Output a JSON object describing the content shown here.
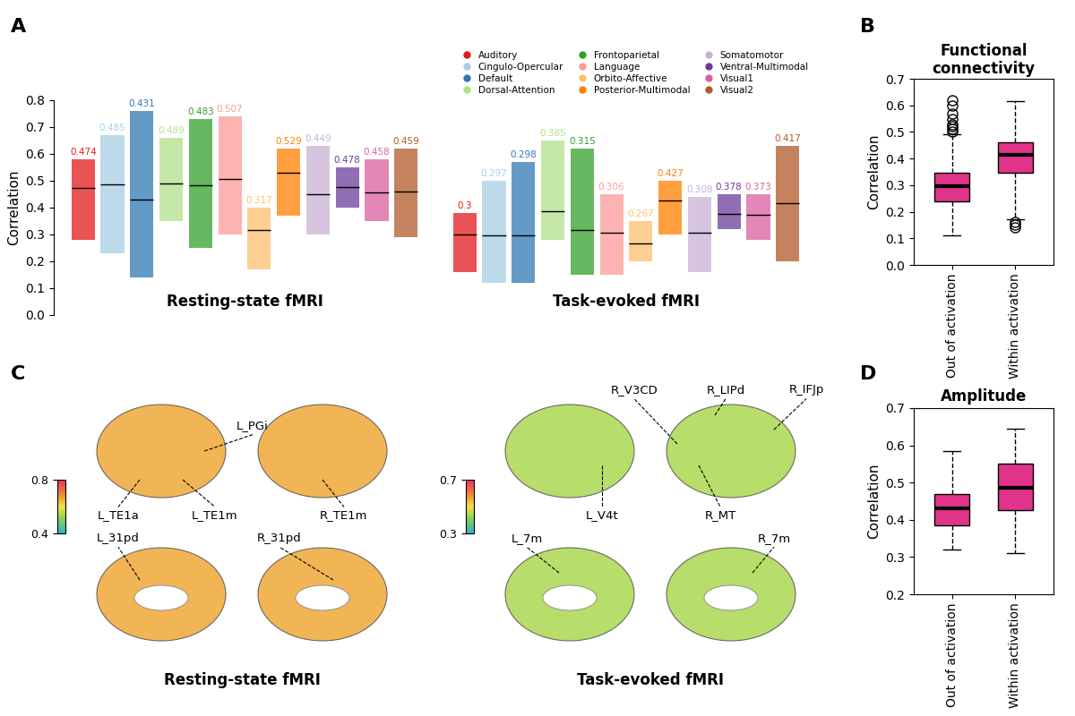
{
  "chart_data": [
    {
      "panel_label": "A",
      "type": "range",
      "ylabel": "Correlation",
      "groups": [
        "Resting-state fMRI",
        "Task-evoked fMRI"
      ],
      "ylim": [
        0.0,
        0.8
      ],
      "yticks": [
        0.0,
        0.1,
        0.2,
        0.3,
        0.4,
        0.5,
        0.6,
        0.7,
        0.8
      ],
      "legend": "upper right",
      "data_labels": true,
      "tick_labels": "y",
      "series": [
        {
          "name": "Auditory",
          "color": "#e31a1c",
          "values": [
            0.474,
            0.3
          ],
          "low": [
            0.28,
            0.16
          ],
          "high": [
            0.58,
            0.38
          ]
        },
        {
          "name": "Cingulo-Opercular",
          "color": "#a6cee3",
          "values": [
            0.485,
            0.297
          ],
          "low": [
            0.23,
            0.12
          ],
          "high": [
            0.67,
            0.5
          ]
        },
        {
          "name": "Default",
          "color": "#2f78b4",
          "values": [
            0.431,
            0.298
          ],
          "low": [
            0.14,
            0.12
          ],
          "high": [
            0.76,
            0.57
          ]
        },
        {
          "name": "Dorsal-Attention",
          "color": "#b2df8a",
          "values": [
            0.489,
            0.385
          ],
          "low": [
            0.35,
            0.28
          ],
          "high": [
            0.66,
            0.65
          ]
        },
        {
          "name": "Frontoparietal",
          "color": "#33a02c",
          "values": [
            0.483,
            0.315
          ],
          "low": [
            0.25,
            0.15
          ],
          "high": [
            0.73,
            0.62
          ]
        },
        {
          "name": "Language",
          "color": "#fb9a99",
          "values": [
            0.507,
            0.306
          ],
          "low": [
            0.3,
            0.15
          ],
          "high": [
            0.74,
            0.45
          ]
        },
        {
          "name": "Orbito-Affective",
          "color": "#fdbf6f",
          "values": [
            0.317,
            0.267
          ],
          "low": [
            0.17,
            0.2
          ],
          "high": [
            0.4,
            0.35
          ]
        },
        {
          "name": "Posterior-Multimodal",
          "color": "#ff7f00",
          "values": [
            0.529,
            0.427
          ],
          "low": [
            0.37,
            0.3
          ],
          "high": [
            0.62,
            0.5
          ]
        },
        {
          "name": "Somatomotor",
          "color": "#cab2d6",
          "values": [
            0.449,
            0.308
          ],
          "low": [
            0.3,
            0.16
          ],
          "high": [
            0.63,
            0.44
          ]
        },
        {
          "name": "Ventral-Multimodal",
          "color": "#6a3d9a",
          "values": [
            0.478,
            0.378
          ],
          "low": [
            0.4,
            0.32
          ],
          "high": [
            0.55,
            0.45
          ]
        },
        {
          "name": "Visual1",
          "color": "#d95f9f",
          "values": [
            0.458,
            0.373
          ],
          "low": [
            0.35,
            0.28
          ],
          "high": [
            0.58,
            0.45
          ]
        },
        {
          "name": "Visual2",
          "color": "#b15928",
          "values": [
            0.459,
            0.417
          ],
          "low": [
            0.29,
            0.2
          ],
          "high": [
            0.62,
            0.63
          ]
        }
      ]
    },
    {
      "panel_label": "B",
      "type": "box",
      "title": "Functional connectivity",
      "ylabel": "Correlation",
      "categories": [
        "Out of activation",
        "Within activation"
      ],
      "color": "#e0338a",
      "ylim": [
        0.0,
        0.7
      ],
      "yticks": [
        0.0,
        0.1,
        0.2,
        0.3,
        0.4,
        0.5,
        0.6,
        0.7
      ],
      "boxes": [
        {
          "whislo": 0.11,
          "q1": 0.24,
          "med": 0.295,
          "q3": 0.345,
          "whishi": 0.49,
          "fliers": [
            0.5,
            0.51,
            0.52,
            0.53,
            0.55,
            0.57,
            0.6,
            0.62
          ]
        },
        {
          "whislo": 0.17,
          "q1": 0.345,
          "med": 0.415,
          "q3": 0.46,
          "whishi": 0.615,
          "fliers": [
            0.16,
            0.15,
            0.14
          ]
        }
      ]
    },
    {
      "panel_label": "D",
      "type": "box",
      "title": "Amplitude",
      "ylabel": "Correlation",
      "categories": [
        "Out of activation",
        "Within activation"
      ],
      "color": "#e0338a",
      "ylim": [
        0.2,
        0.7
      ],
      "yticks": [
        0.2,
        0.3,
        0.4,
        0.5,
        0.6,
        0.7
      ],
      "boxes": [
        {
          "whislo": 0.32,
          "q1": 0.385,
          "med": 0.43,
          "q3": 0.47,
          "whishi": 0.585,
          "fliers": []
        },
        {
          "whislo": 0.31,
          "q1": 0.425,
          "med": 0.485,
          "q3": 0.55,
          "whishi": 0.645,
          "fliers": []
        }
      ]
    }
  ],
  "diagram": {
    "panel_label": "C",
    "views": [
      {
        "title": "Resting-state fMRI",
        "colorbar": {
          "range": [
            0.4,
            0.8
          ],
          "ticks": [
            0.4,
            0.8
          ]
        },
        "regions": [
          "L_PGi",
          "L_TE1a",
          "L_TE1m",
          "R_TE1m",
          "L_31pd",
          "R_31pd"
        ]
      },
      {
        "title": "Task-evoked fMRI",
        "colorbar": {
          "range": [
            0.3,
            0.7
          ],
          "ticks": [
            0.3,
            0.7
          ]
        },
        "regions": [
          "R_LIPd",
          "R_IFJp",
          "R_V3CD",
          "L_V4t",
          "R_MT",
          "L_7m",
          "R_7m"
        ]
      }
    ]
  }
}
